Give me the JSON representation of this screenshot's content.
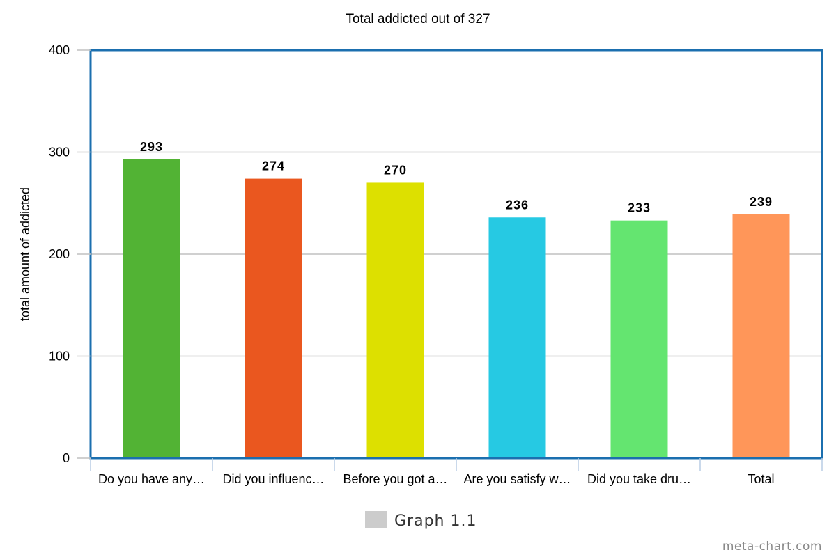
{
  "chart_data": {
    "type": "bar",
    "title": "Total addicted out of 327",
    "xlabel": "",
    "ylabel": "total amount of addicted",
    "ylim": [
      0,
      400
    ],
    "yticks": [
      0,
      100,
      200,
      300,
      400
    ],
    "grid": true,
    "categories": [
      "Do you have any…",
      "Did you influenc…",
      "Before you got a…",
      "Are you satisfy w…",
      "Did you take dru…",
      "Total"
    ],
    "series": [
      {
        "name": "Graph 1.1",
        "values": [
          293,
          274,
          270,
          236,
          233,
          239
        ]
      }
    ],
    "bar_colors": [
      "#52b334",
      "#ea571f",
      "#dde000",
      "#26c9e3",
      "#64e570",
      "#ff9659"
    ],
    "legend_color": "#cccccc",
    "legend_position": "bottom-center",
    "frame_color": "#1b6faf",
    "grid_color": "#c0c0c0"
  },
  "watermark": "meta-chart.com"
}
